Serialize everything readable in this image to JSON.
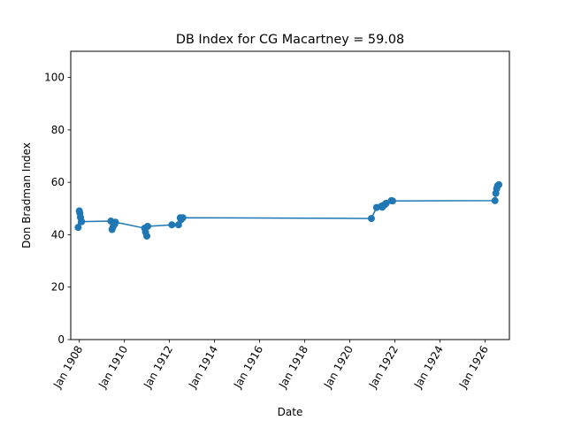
{
  "chart_data": {
    "type": "line",
    "title": "DB Index for CG Macartney = 59.08",
    "xlabel": "Date",
    "ylabel": "Don Bradman Index",
    "xlim": [
      "1907-08-15",
      "1927-02-01"
    ],
    "ylim": [
      0,
      110
    ],
    "x_ticks": [
      {
        "date": "1908-01-01",
        "label": "Jan 1908"
      },
      {
        "date": "1910-01-01",
        "label": "Jan 1910"
      },
      {
        "date": "1912-01-01",
        "label": "Jan 1912"
      },
      {
        "date": "1914-01-01",
        "label": "Jan 1914"
      },
      {
        "date": "1916-01-01",
        "label": "Jan 1916"
      },
      {
        "date": "1918-01-01",
        "label": "Jan 1918"
      },
      {
        "date": "1920-01-01",
        "label": "Jan 1920"
      },
      {
        "date": "1922-01-01",
        "label": "Jan 1922"
      },
      {
        "date": "1924-01-01",
        "label": "Jan 1924"
      },
      {
        "date": "1926-01-01",
        "label": "Jan 1926"
      }
    ],
    "y_ticks": [
      0,
      20,
      40,
      60,
      80,
      100
    ],
    "grid": false,
    "series": [
      {
        "color": "#1f77b4",
        "marker": "circle",
        "points": [
          {
            "x": "1907-12-13",
            "y": 42.8
          },
          {
            "x": "1908-01-01",
            "y": 49.1
          },
          {
            "x": "1908-01-10",
            "y": 48.2
          },
          {
            "x": "1908-01-20",
            "y": 46.6
          },
          {
            "x": "1908-02-07",
            "y": 45.0
          },
          {
            "x": "1909-05-27",
            "y": 45.2
          },
          {
            "x": "1909-06-14",
            "y": 42.0
          },
          {
            "x": "1909-07-01",
            "y": 43.0
          },
          {
            "x": "1909-07-26",
            "y": 44.0
          },
          {
            "x": "1909-08-09",
            "y": 44.8
          },
          {
            "x": "1910-11-25",
            "y": 42.5
          },
          {
            "x": "1910-12-09",
            "y": 41.0
          },
          {
            "x": "1910-12-30",
            "y": 39.5
          },
          {
            "x": "1911-01-13",
            "y": 43.2
          },
          {
            "x": "1912-02-09",
            "y": 43.8
          },
          {
            "x": "1912-05-27",
            "y": 43.8
          },
          {
            "x": "1912-06-24",
            "y": 46.5
          },
          {
            "x": "1912-07-08",
            "y": 45.8
          },
          {
            "x": "1912-08-05",
            "y": 46.5
          },
          {
            "x": "1920-12-17",
            "y": 46.2
          },
          {
            "x": "1921-03-11",
            "y": 50.4
          },
          {
            "x": "1921-05-28",
            "y": 50.9
          },
          {
            "x": "1921-06-11",
            "y": 50.5
          },
          {
            "x": "1921-07-02",
            "y": 51.2
          },
          {
            "x": "1921-07-23",
            "y": 51.5
          },
          {
            "x": "1921-08-13",
            "y": 52.0
          },
          {
            "x": "1921-11-05",
            "y": 53.0
          },
          {
            "x": "1921-11-26",
            "y": 52.9
          },
          {
            "x": "1926-06-12",
            "y": 53.0
          },
          {
            "x": "1926-06-26",
            "y": 55.8
          },
          {
            "x": "1926-07-10",
            "y": 57.6
          },
          {
            "x": "1926-07-24",
            "y": 58.7
          },
          {
            "x": "1926-08-14",
            "y": 59.08
          }
        ]
      }
    ]
  }
}
